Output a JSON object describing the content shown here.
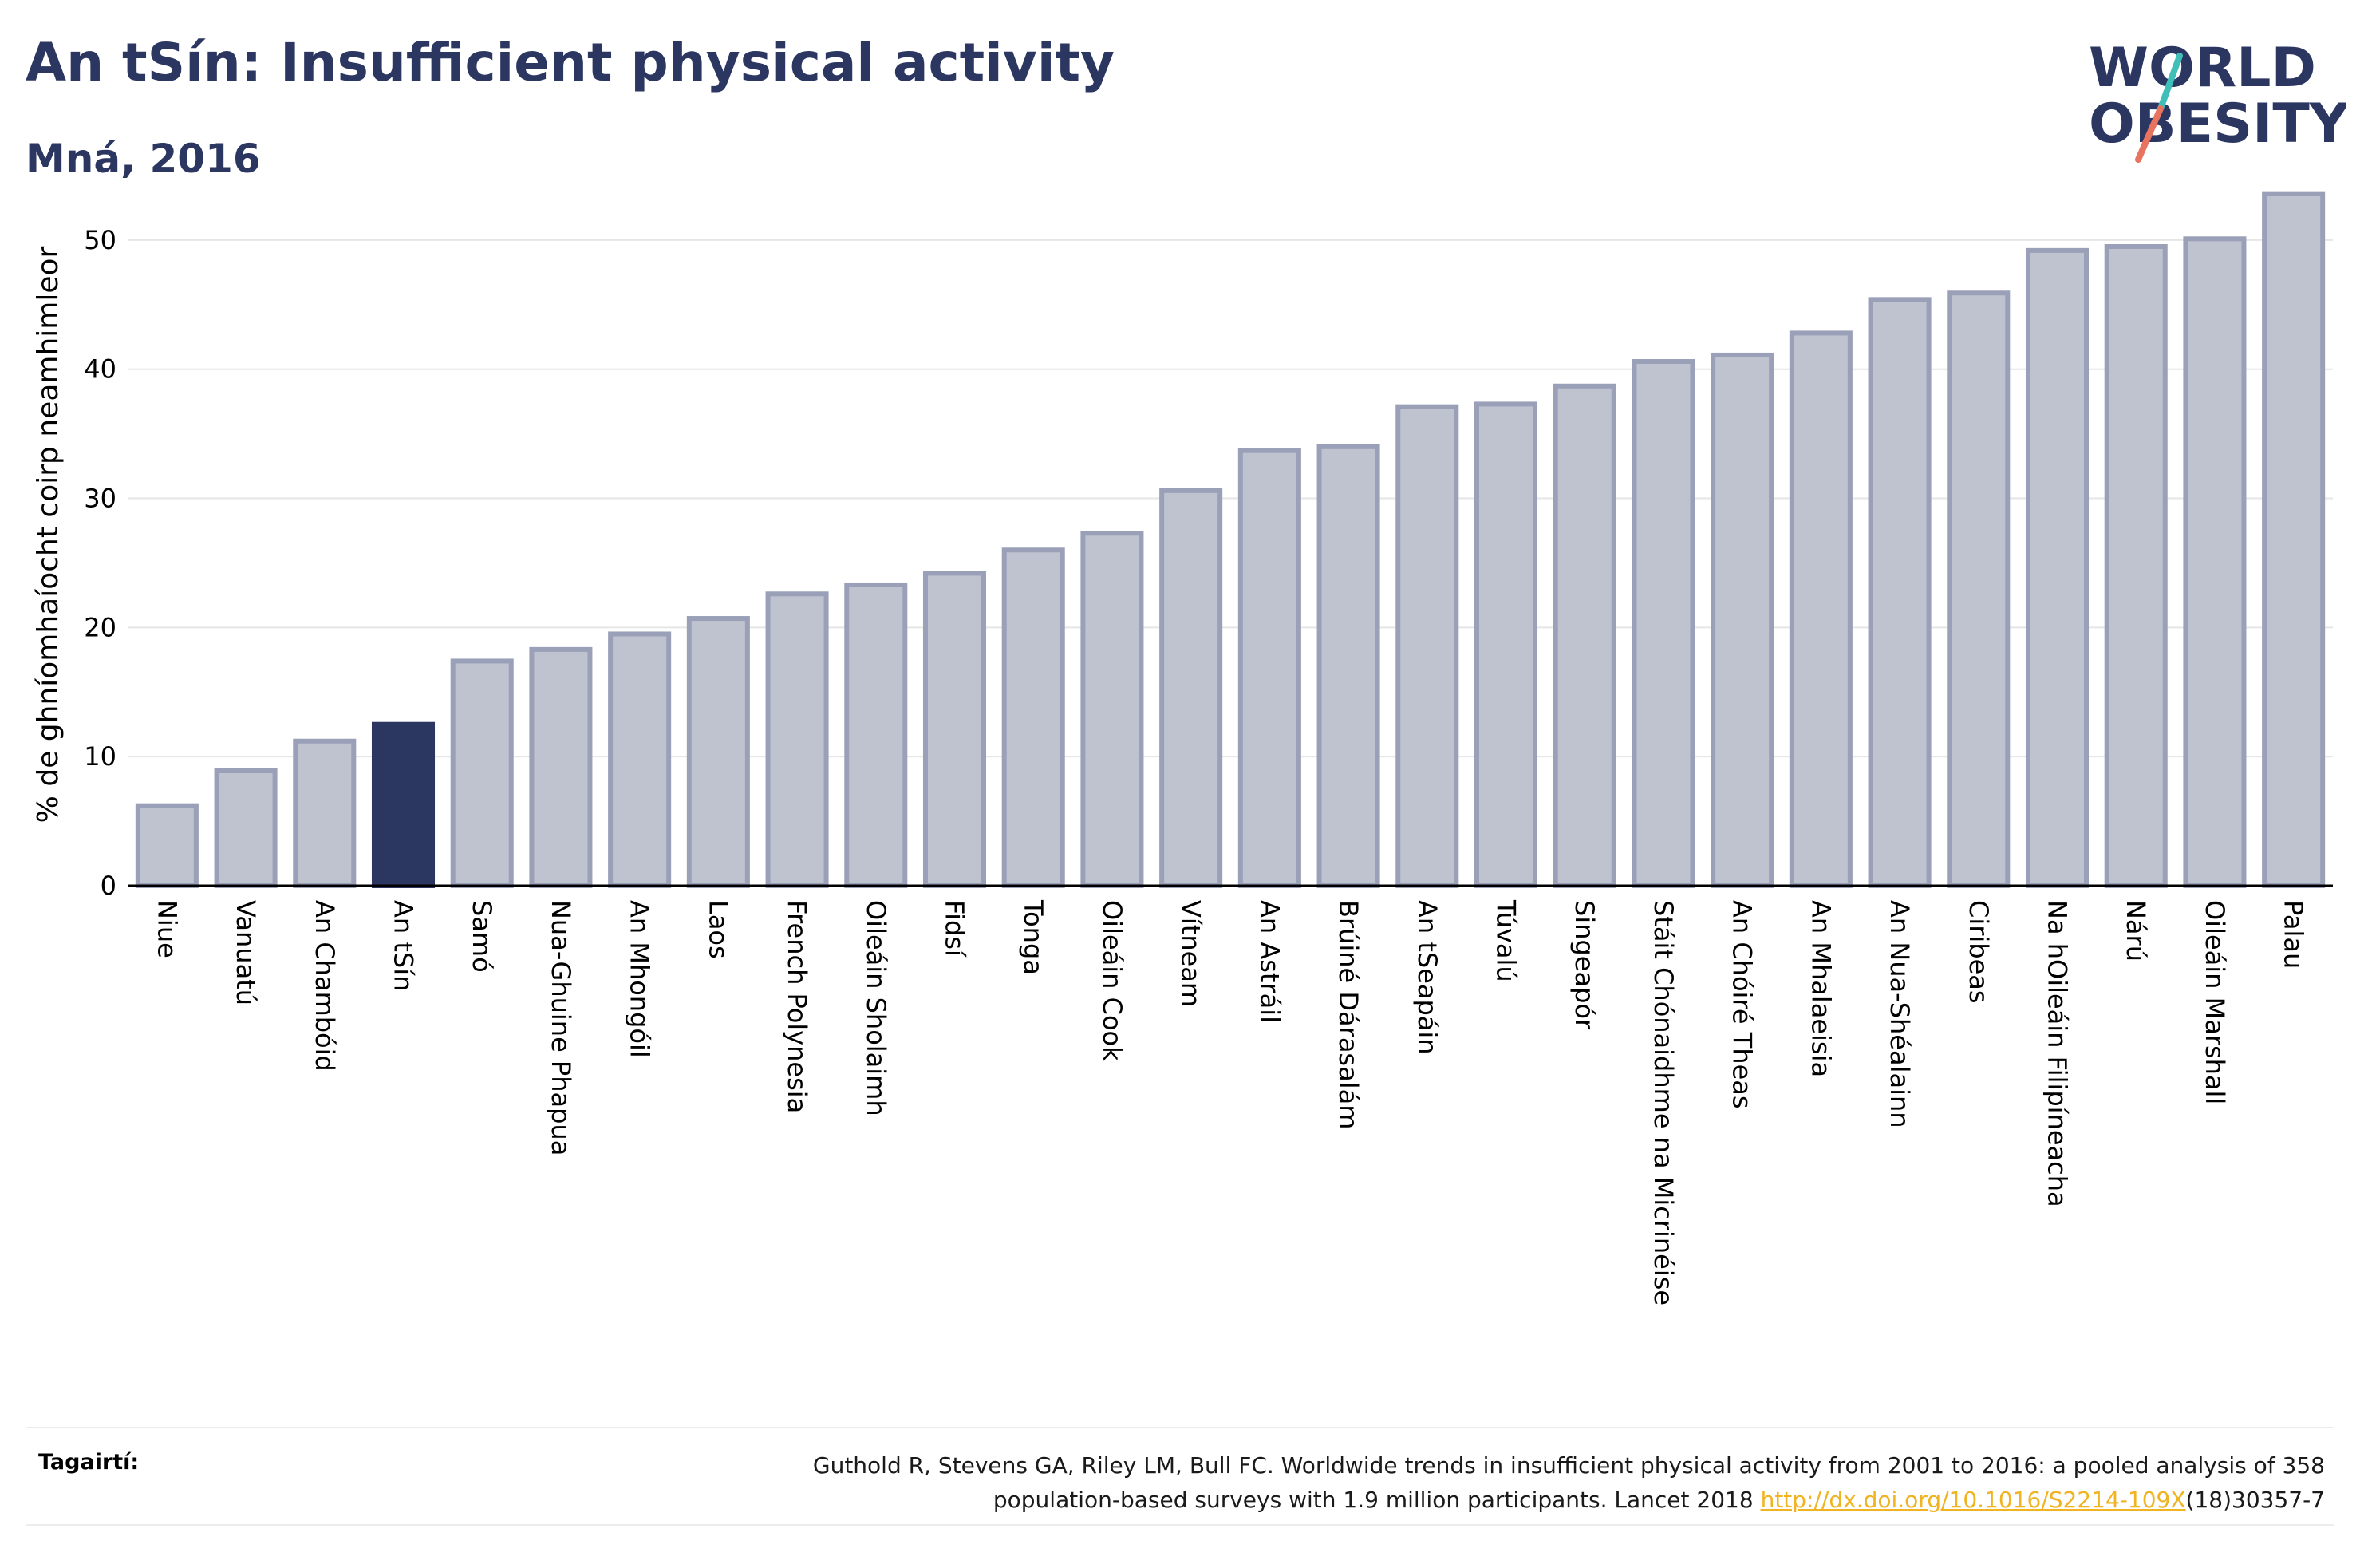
{
  "header": {
    "title": "An tSín: Insufficient physical activity",
    "subtitle": "Mná, 2016"
  },
  "logo": {
    "line1": "WORLD",
    "line2": "OBESITY",
    "accent_colors": [
      "#3fbfb8",
      "#e8735e"
    ]
  },
  "chart_data": {
    "type": "bar",
    "title": "An tSín: Insufficient physical activity",
    "subtitle": "Mná, 2016",
    "xlabel": "",
    "ylabel": "% de ghníomhaíocht coirp neamhimleor",
    "ylim": [
      0,
      55
    ],
    "yticks": [
      0,
      10,
      20,
      30,
      40,
      50
    ],
    "grid": true,
    "highlight": "An tSín",
    "colors": {
      "default": "#bfc2cf",
      "default_edge": "#9aa0b8",
      "highlight": "#2b3661"
    },
    "categories": [
      "Niue",
      "Vanuatú",
      "An Chambóid",
      "An tSín",
      "Samó",
      "Nua-Ghuine Phapua",
      "An Mhongóil",
      "Laos",
      "French Polynesia",
      "Oileáin Sholaimh",
      "Fidsí",
      "Tonga",
      "Oileáin Cook",
      "Vítneam",
      "An Astráil",
      "Brúiné Dárasalám",
      "An tSeapáin",
      "Túvalú",
      "Singeapór",
      "Stáit Chónaidhme na Micrinéise",
      "An Chóiré Theas",
      "An Mhalaeisia",
      "An Nua-Shéalainn",
      "Ciribeas",
      "Na hOileáin Filipíneacha",
      "Nárú",
      "Oileáin Marshall",
      "Palau"
    ],
    "values": [
      6.2,
      8.9,
      11.2,
      12.5,
      17.4,
      18.3,
      19.5,
      20.7,
      22.6,
      23.3,
      24.2,
      26.0,
      27.3,
      30.6,
      33.7,
      34.0,
      37.1,
      37.3,
      38.7,
      40.6,
      41.1,
      42.8,
      45.4,
      45.9,
      49.2,
      49.5,
      50.1,
      53.6
    ]
  },
  "footer": {
    "ref_label": "Tagairtí:",
    "ref_text_1": "Guthold R, Stevens GA, Riley LM, Bull FC. Worldwide trends in insufficient physical activity from 2001 to 2016: a pooled analysis of 358",
    "ref_text_2": "population-based surveys with 1.9 million participants. Lancet 2018 ",
    "ref_link": "http://dx.doi.org/10.1016/S2214-109X",
    "ref_text_3": "(18)30357-7"
  }
}
